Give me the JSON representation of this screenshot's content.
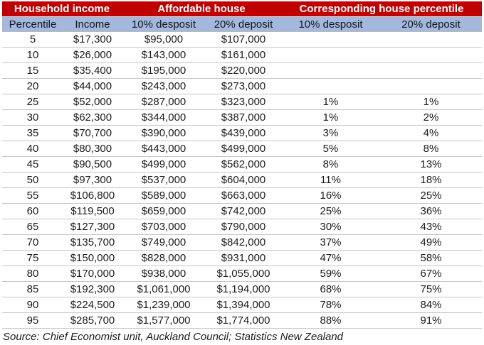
{
  "colors": {
    "header_red": "#C00000",
    "subheader_blue": "#A3B8DC",
    "row_border_gray": "#C6C6C6",
    "header_text_white": "#FFFFFF",
    "body_text": "#1C1C1C"
  },
  "chart_data": {
    "type": "table",
    "title": "",
    "group_headers": [
      {
        "label": "Household income",
        "span": 2
      },
      {
        "label": "Affordable house",
        "span": 2
      },
      {
        "label": "Corresponding house percentile",
        "span": 2
      }
    ],
    "columns": [
      "Percentile",
      "Income",
      "10% desposit",
      "20% deposit",
      "10% desposit",
      "20% deposit"
    ],
    "rows": [
      [
        "5",
        "$17,300",
        "$95,000",
        "$107,000",
        "",
        ""
      ],
      [
        "10",
        "$26,000",
        "$143,000",
        "$161,000",
        "",
        ""
      ],
      [
        "15",
        "$35,400",
        "$195,000",
        "$220,000",
        "",
        ""
      ],
      [
        "20",
        "$44,000",
        "$243,000",
        "$273,000",
        "",
        ""
      ],
      [
        "25",
        "$52,000",
        "$287,000",
        "$323,000",
        "1%",
        "1%"
      ],
      [
        "30",
        "$62,300",
        "$344,000",
        "$387,000",
        "1%",
        "2%"
      ],
      [
        "35",
        "$70,700",
        "$390,000",
        "$439,000",
        "3%",
        "4%"
      ],
      [
        "40",
        "$80,300",
        "$443,000",
        "$499,000",
        "5%",
        "8%"
      ],
      [
        "45",
        "$90,500",
        "$499,000",
        "$562,000",
        "8%",
        "13%"
      ],
      [
        "50",
        "$97,300",
        "$537,000",
        "$604,000",
        "11%",
        "18%"
      ],
      [
        "55",
        "$106,800",
        "$589,000",
        "$663,000",
        "16%",
        "25%"
      ],
      [
        "60",
        "$119,500",
        "$659,000",
        "$742,000",
        "25%",
        "36%"
      ],
      [
        "65",
        "$127,300",
        "$703,000",
        "$790,000",
        "30%",
        "43%"
      ],
      [
        "70",
        "$135,700",
        "$749,000",
        "$842,000",
        "37%",
        "49%"
      ],
      [
        "75",
        "$150,000",
        "$828,000",
        "$931,000",
        "47%",
        "58%"
      ],
      [
        "80",
        "$170,000",
        "$938,000",
        "$1,055,000",
        "59%",
        "67%"
      ],
      [
        "85",
        "$192,300",
        "$1,061,000",
        "$1,194,000",
        "68%",
        "75%"
      ],
      [
        "90",
        "$224,500",
        "$1,239,000",
        "$1,394,000",
        "78%",
        "84%"
      ],
      [
        "95",
        "$285,700",
        "$1,577,000",
        "$1,774,000",
        "88%",
        "91%"
      ]
    ],
    "source": "Source: Chief Economist unit, Auckland Council; Statistics New Zealand"
  }
}
